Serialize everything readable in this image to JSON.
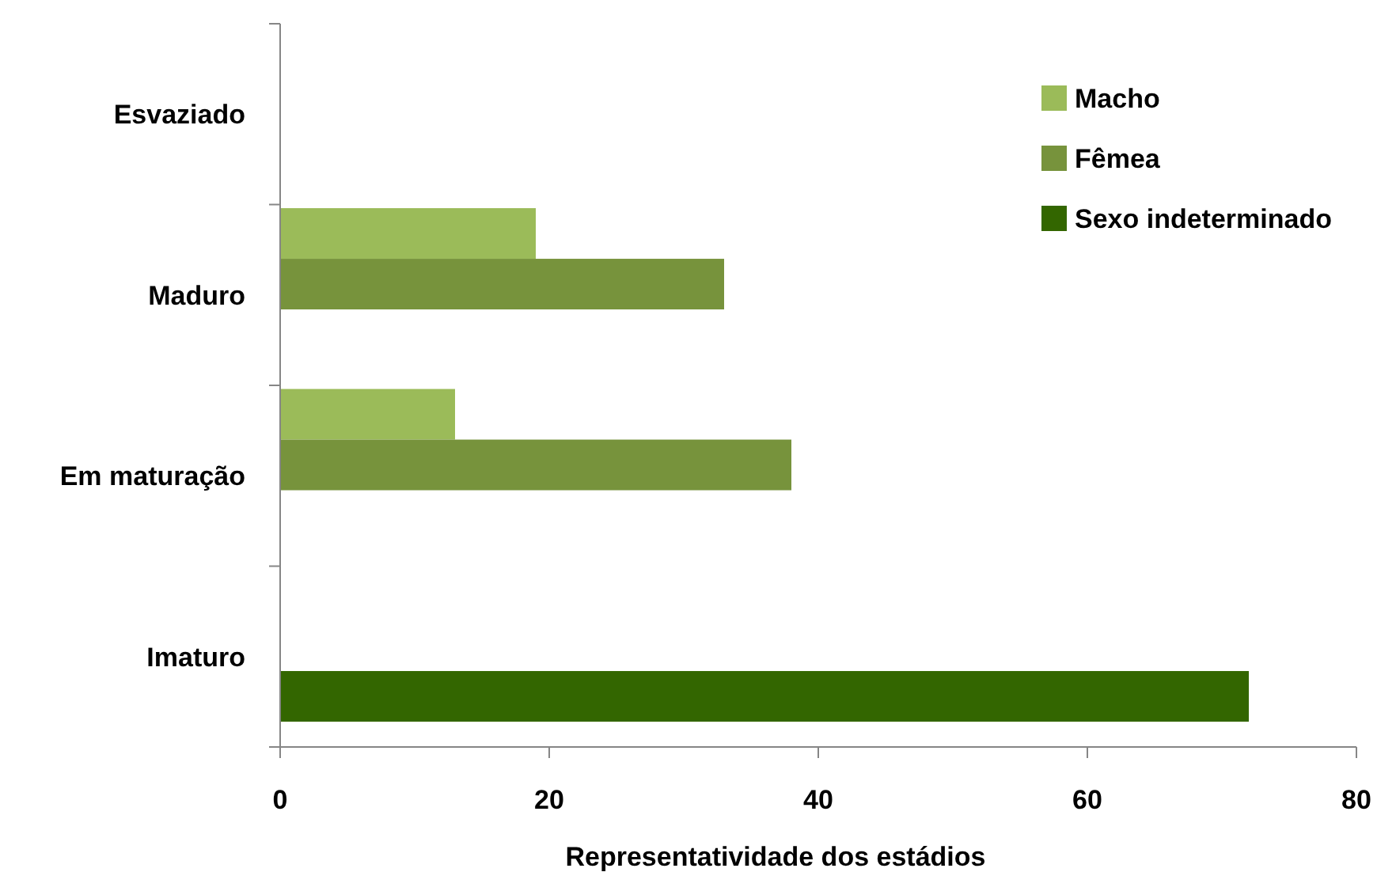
{
  "chart_data": {
    "type": "bar",
    "orientation": "horizontal",
    "xlabel": "Representatividade dos estádios",
    "categories": [
      "Esvaziado",
      "Maduro",
      "Em maturação",
      "Imaturo"
    ],
    "series": [
      {
        "name": "Macho",
        "color": "#9bbb59",
        "values": [
          0,
          19,
          13,
          0
        ]
      },
      {
        "name": "Fêmea",
        "color": "#77933c",
        "values": [
          0,
          33,
          38,
          0
        ]
      },
      {
        "name": "Sexo indeterminado",
        "color": "#336600",
        "values": [
          0,
          0,
          0,
          72
        ]
      }
    ],
    "xlim": [
      0,
      80
    ],
    "xticks": [
      0,
      20,
      40,
      60,
      80
    ],
    "grid": false,
    "legend": "top right"
  }
}
